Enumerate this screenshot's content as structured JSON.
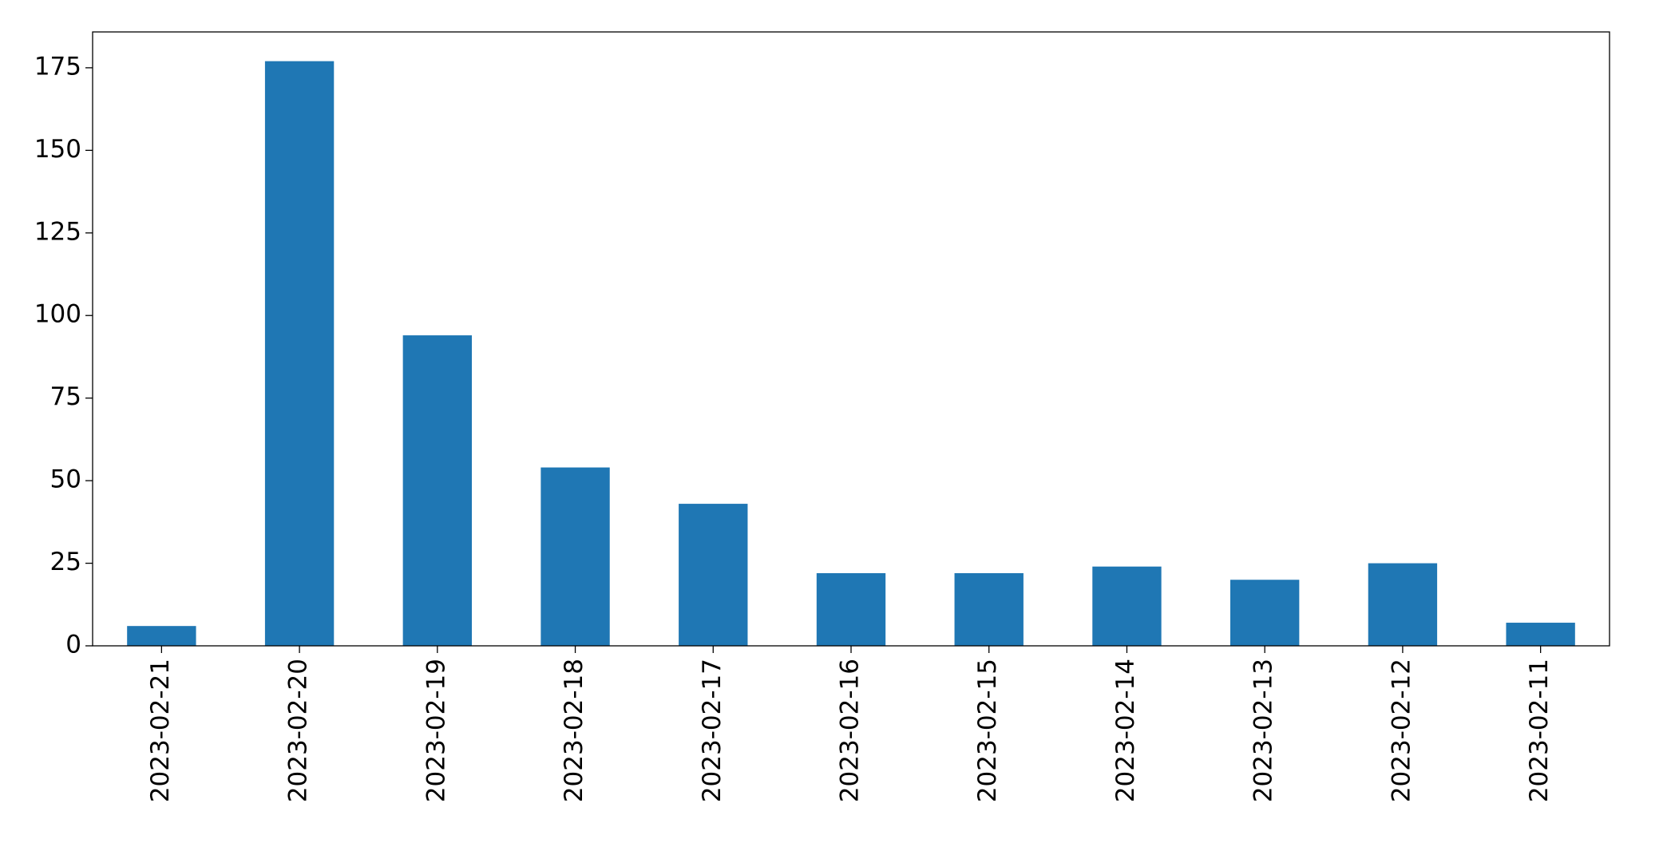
{
  "chart_data": {
    "type": "bar",
    "categories": [
      "2023-02-21",
      "2023-02-20",
      "2023-02-19",
      "2023-02-18",
      "2023-02-17",
      "2023-02-16",
      "2023-02-15",
      "2023-02-14",
      "2023-02-13",
      "2023-02-12",
      "2023-02-11"
    ],
    "values": [
      6,
      177,
      94,
      54,
      43,
      22,
      22,
      24,
      20,
      25,
      7
    ],
    "color": "#1f77b4",
    "ylim": [
      0,
      185.85
    ],
    "yticks": [
      0,
      25,
      50,
      75,
      100,
      125,
      150,
      175
    ],
    "grid": false
  }
}
